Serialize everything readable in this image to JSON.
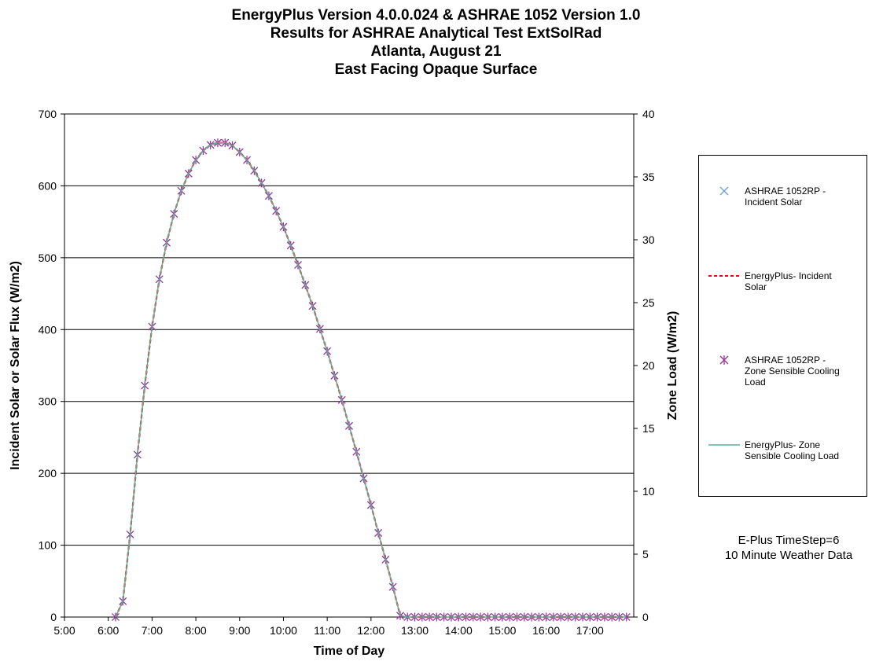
{
  "chart_data": {
    "type": "line",
    "title": [
      "EnergyPlus Version 4.0.0.024 & ASHRAE 1052 Version 1.0",
      "Results for ASHRAE Analytical Test ExtSolRad",
      "Atlanta, August 21",
      "East Facing Opaque Surface"
    ],
    "xlabel": "Time of Day",
    "ylabel": "Incident Solar or Solar Flux (W/m2)",
    "y2label": "Zone Load (W/m2)",
    "xlim": [
      "5:00",
      "18:00"
    ],
    "ylim": [
      0,
      700
    ],
    "y2lim": [
      0,
      40
    ],
    "xticks": [
      "5:00",
      "6:00",
      "7:00",
      "8:00",
      "9:00",
      "10:00",
      "11:00",
      "12:00",
      "13:00",
      "14:00",
      "15:00",
      "16:00",
      "17:00"
    ],
    "yticks": [
      "0",
      "100",
      "200",
      "300",
      "400",
      "500",
      "600",
      "700"
    ],
    "y2ticks": [
      "0",
      "5",
      "10",
      "15",
      "20",
      "25",
      "30",
      "35",
      "40"
    ],
    "grid": "horizontal major gridlines",
    "legend_position": "right",
    "series": [
      {
        "name": "ASHRAE 1052RP - Incident Solar",
        "marker": "x",
        "color": "#6f9fd8",
        "axis": "left",
        "points": [
          [
            "6:10",
            0
          ],
          [
            "6:20",
            22
          ],
          [
            "6:30",
            115
          ],
          [
            "6:40",
            226
          ],
          [
            "6:50",
            322
          ],
          [
            "7:00",
            404
          ],
          [
            "7:10",
            470
          ],
          [
            "7:20",
            521
          ],
          [
            "7:30",
            561
          ],
          [
            "7:40",
            593
          ],
          [
            "7:50",
            617
          ],
          [
            "8:00",
            636
          ],
          [
            "8:10",
            649
          ],
          [
            "8:20",
            657
          ],
          [
            "8:30",
            660
          ],
          [
            "8:40",
            660
          ],
          [
            "8:50",
            656
          ],
          [
            "9:00",
            647
          ],
          [
            "9:10",
            636
          ],
          [
            "9:20",
            621
          ],
          [
            "9:30",
            604
          ],
          [
            "9:40",
            586
          ],
          [
            "9:50",
            565
          ],
          [
            "10:00",
            543
          ],
          [
            "10:10",
            517
          ],
          [
            "10:20",
            490
          ],
          [
            "10:30",
            462
          ],
          [
            "10:40",
            433
          ],
          [
            "10:50",
            401
          ],
          [
            "11:00",
            370
          ],
          [
            "11:10",
            336
          ],
          [
            "11:20",
            302
          ],
          [
            "11:30",
            266
          ],
          [
            "11:40",
            230
          ],
          [
            "11:50",
            193
          ],
          [
            "12:00",
            156
          ],
          [
            "12:10",
            117
          ],
          [
            "12:20",
            80
          ],
          [
            "12:30",
            42
          ],
          [
            "12:40",
            2
          ],
          [
            "12:50",
            0
          ],
          [
            "13:00",
            0
          ],
          [
            "13:10",
            0
          ],
          [
            "13:20",
            0
          ],
          [
            "13:30",
            0
          ],
          [
            "13:40",
            0
          ],
          [
            "13:50",
            0
          ],
          [
            "14:00",
            0
          ],
          [
            "14:10",
            0
          ],
          [
            "14:20",
            0
          ],
          [
            "14:30",
            0
          ],
          [
            "14:40",
            0
          ],
          [
            "14:50",
            0
          ],
          [
            "15:00",
            0
          ],
          [
            "15:10",
            0
          ],
          [
            "15:20",
            0
          ],
          [
            "15:30",
            0
          ],
          [
            "15:40",
            0
          ],
          [
            "15:50",
            0
          ],
          [
            "16:00",
            0
          ],
          [
            "16:10",
            0
          ],
          [
            "16:20",
            0
          ],
          [
            "16:30",
            0
          ],
          [
            "16:40",
            0
          ],
          [
            "16:50",
            0
          ],
          [
            "17:00",
            0
          ],
          [
            "17:10",
            0
          ],
          [
            "17:20",
            0
          ],
          [
            "17:30",
            0
          ],
          [
            "17:40",
            0
          ],
          [
            "17:50",
            0
          ]
        ]
      },
      {
        "name": "EnergyPlus- Incident Solar",
        "line": "dashed",
        "color": "#ff0000",
        "axis": "left",
        "points": [
          [
            "6:10",
            0
          ],
          [
            "6:20",
            22
          ],
          [
            "6:30",
            115
          ],
          [
            "6:40",
            226
          ],
          [
            "6:50",
            322
          ],
          [
            "7:00",
            404
          ],
          [
            "7:10",
            470
          ],
          [
            "7:20",
            521
          ],
          [
            "7:30",
            561
          ],
          [
            "7:40",
            593
          ],
          [
            "7:50",
            617
          ],
          [
            "8:00",
            636
          ],
          [
            "8:10",
            649
          ],
          [
            "8:20",
            657
          ],
          [
            "8:30",
            660
          ],
          [
            "8:40",
            660
          ],
          [
            "8:50",
            656
          ],
          [
            "9:00",
            647
          ],
          [
            "9:10",
            636
          ],
          [
            "9:20",
            621
          ],
          [
            "9:30",
            604
          ],
          [
            "9:40",
            586
          ],
          [
            "9:50",
            565
          ],
          [
            "10:00",
            543
          ],
          [
            "10:10",
            517
          ],
          [
            "10:20",
            490
          ],
          [
            "10:30",
            462
          ],
          [
            "10:40",
            433
          ],
          [
            "10:50",
            401
          ],
          [
            "11:00",
            370
          ],
          [
            "11:10",
            336
          ],
          [
            "11:20",
            302
          ],
          [
            "11:30",
            266
          ],
          [
            "11:40",
            230
          ],
          [
            "11:50",
            193
          ],
          [
            "12:00",
            156
          ],
          [
            "12:10",
            117
          ],
          [
            "12:20",
            80
          ],
          [
            "12:30",
            42
          ],
          [
            "12:40",
            2
          ],
          [
            "12:50",
            0
          ],
          [
            "13:00",
            0
          ],
          [
            "13:10",
            0
          ],
          [
            "13:20",
            0
          ],
          [
            "13:30",
            0
          ],
          [
            "13:40",
            0
          ],
          [
            "13:50",
            0
          ],
          [
            "14:00",
            0
          ],
          [
            "14:10",
            0
          ],
          [
            "14:20",
            0
          ],
          [
            "14:30",
            0
          ],
          [
            "14:40",
            0
          ],
          [
            "14:50",
            0
          ],
          [
            "15:00",
            0
          ],
          [
            "15:10",
            0
          ],
          [
            "15:20",
            0
          ],
          [
            "15:30",
            0
          ],
          [
            "15:40",
            0
          ],
          [
            "15:50",
            0
          ],
          [
            "16:00",
            0
          ],
          [
            "16:10",
            0
          ],
          [
            "16:20",
            0
          ],
          [
            "16:30",
            0
          ],
          [
            "16:40",
            0
          ],
          [
            "16:50",
            0
          ],
          [
            "17:00",
            0
          ],
          [
            "17:10",
            0
          ],
          [
            "17:20",
            0
          ],
          [
            "17:30",
            0
          ],
          [
            "17:40",
            0
          ],
          [
            "17:50",
            0
          ]
        ]
      },
      {
        "name": "ASHRAE 1052RP - Zone Sensible Cooling Load",
        "marker": "asterisk",
        "color": "#993399",
        "axis": "right",
        "points": [
          [
            "6:10",
            0
          ],
          [
            "6:20",
            1.26
          ],
          [
            "6:30",
            6.57
          ],
          [
            "6:40",
            12.91
          ],
          [
            "6:50",
            18.4
          ],
          [
            "7:00",
            23.09
          ],
          [
            "7:10",
            26.86
          ],
          [
            "7:20",
            29.77
          ],
          [
            "7:30",
            32.06
          ],
          [
            "7:40",
            33.89
          ],
          [
            "7:50",
            35.26
          ],
          [
            "8:00",
            36.34
          ],
          [
            "8:10",
            37.09
          ],
          [
            "8:20",
            37.54
          ],
          [
            "8:30",
            37.71
          ],
          [
            "8:40",
            37.71
          ],
          [
            "8:50",
            37.49
          ],
          [
            "9:00",
            36.97
          ],
          [
            "9:10",
            36.34
          ],
          [
            "9:20",
            35.49
          ],
          [
            "9:30",
            34.51
          ],
          [
            "9:40",
            33.49
          ],
          [
            "9:50",
            32.29
          ],
          [
            "10:00",
            31.03
          ],
          [
            "10:10",
            29.54
          ],
          [
            "10:20",
            28
          ],
          [
            "10:30",
            26.4
          ],
          [
            "10:40",
            24.74
          ],
          [
            "10:50",
            22.91
          ],
          [
            "11:00",
            21.14
          ],
          [
            "11:10",
            19.2
          ],
          [
            "11:20",
            17.26
          ],
          [
            "11:30",
            15.2
          ],
          [
            "11:40",
            13.14
          ],
          [
            "11:50",
            11.03
          ],
          [
            "12:00",
            8.91
          ],
          [
            "12:10",
            6.69
          ],
          [
            "12:20",
            4.57
          ],
          [
            "12:30",
            2.4
          ],
          [
            "12:40",
            0.11
          ],
          [
            "12:50",
            0
          ],
          [
            "13:00",
            0
          ],
          [
            "13:10",
            0
          ],
          [
            "13:20",
            0
          ],
          [
            "13:30",
            0
          ],
          [
            "13:40",
            0
          ],
          [
            "13:50",
            0
          ],
          [
            "14:00",
            0
          ],
          [
            "14:10",
            0
          ],
          [
            "14:20",
            0
          ],
          [
            "14:30",
            0
          ],
          [
            "14:40",
            0
          ],
          [
            "14:50",
            0
          ],
          [
            "15:00",
            0
          ],
          [
            "15:10",
            0
          ],
          [
            "15:20",
            0
          ],
          [
            "15:30",
            0
          ],
          [
            "15:40",
            0
          ],
          [
            "15:50",
            0
          ],
          [
            "16:00",
            0
          ],
          [
            "16:10",
            0
          ],
          [
            "16:20",
            0
          ],
          [
            "16:30",
            0
          ],
          [
            "16:40",
            0
          ],
          [
            "16:50",
            0
          ],
          [
            "17:00",
            0
          ],
          [
            "17:10",
            0
          ],
          [
            "17:20",
            0
          ],
          [
            "17:30",
            0
          ],
          [
            "17:40",
            0
          ],
          [
            "17:50",
            0
          ]
        ]
      },
      {
        "name": "EnergyPlus- Zone Sensible Cooling Load",
        "line": "solid",
        "color": "#5fae99",
        "axis": "right",
        "points": [
          [
            "6:10",
            0
          ],
          [
            "6:20",
            1.26
          ],
          [
            "6:30",
            6.57
          ],
          [
            "6:40",
            12.91
          ],
          [
            "6:50",
            18.4
          ],
          [
            "7:00",
            23.09
          ],
          [
            "7:10",
            26.86
          ],
          [
            "7:20",
            29.77
          ],
          [
            "7:30",
            32.06
          ],
          [
            "7:40",
            33.89
          ],
          [
            "7:50",
            35.26
          ],
          [
            "8:00",
            36.34
          ],
          [
            "8:10",
            37.09
          ],
          [
            "8:20",
            37.54
          ],
          [
            "8:30",
            37.71
          ],
          [
            "8:40",
            37.71
          ],
          [
            "8:50",
            37.49
          ],
          [
            "9:00",
            36.97
          ],
          [
            "9:10",
            36.34
          ],
          [
            "9:20",
            35.49
          ],
          [
            "9:30",
            34.51
          ],
          [
            "9:40",
            33.49
          ],
          [
            "9:50",
            32.29
          ],
          [
            "10:00",
            31.03
          ],
          [
            "10:10",
            29.54
          ],
          [
            "10:20",
            28
          ],
          [
            "10:30",
            26.4
          ],
          [
            "10:40",
            24.74
          ],
          [
            "10:50",
            22.91
          ],
          [
            "11:00",
            21.14
          ],
          [
            "11:10",
            19.2
          ],
          [
            "11:20",
            17.26
          ],
          [
            "11:30",
            15.2
          ],
          [
            "11:40",
            13.14
          ],
          [
            "11:50",
            11.03
          ],
          [
            "12:00",
            8.91
          ],
          [
            "12:10",
            6.69
          ],
          [
            "12:20",
            4.57
          ],
          [
            "12:30",
            2.4
          ],
          [
            "12:40",
            0.11
          ],
          [
            "12:50",
            0
          ],
          [
            "13:00",
            0
          ],
          [
            "13:10",
            0
          ],
          [
            "13:20",
            0
          ],
          [
            "13:30",
            0
          ],
          [
            "13:40",
            0
          ],
          [
            "13:50",
            0
          ],
          [
            "14:00",
            0
          ],
          [
            "14:10",
            0
          ],
          [
            "14:20",
            0
          ],
          [
            "14:30",
            0
          ],
          [
            "14:40",
            0
          ],
          [
            "14:50",
            0
          ],
          [
            "15:00",
            0
          ],
          [
            "15:10",
            0
          ],
          [
            "15:20",
            0
          ],
          [
            "15:30",
            0
          ],
          [
            "15:40",
            0
          ],
          [
            "15:50",
            0
          ],
          [
            "16:00",
            0
          ],
          [
            "16:10",
            0
          ],
          [
            "16:20",
            0
          ],
          [
            "16:30",
            0
          ],
          [
            "16:40",
            0
          ],
          [
            "16:50",
            0
          ],
          [
            "17:00",
            0
          ],
          [
            "17:10",
            0
          ],
          [
            "17:20",
            0
          ],
          [
            "17:30",
            0
          ],
          [
            "17:40",
            0
          ],
          [
            "17:50",
            0
          ]
        ]
      }
    ],
    "legend": [
      {
        "lines": [
          "ASHRAE 1052RP -",
          "Incident Solar"
        ]
      },
      {
        "lines": [
          "EnergyPlus- Incident",
          "Solar"
        ]
      },
      {
        "lines": [
          "ASHRAE 1052RP -",
          "Zone Sensible Cooling",
          "Load"
        ]
      },
      {
        "lines": [
          "EnergyPlus- Zone",
          "Sensible Cooling Load"
        ]
      }
    ],
    "annotation": [
      "E-Plus TimeStep=6",
      "10 Minute Weather Data"
    ]
  }
}
